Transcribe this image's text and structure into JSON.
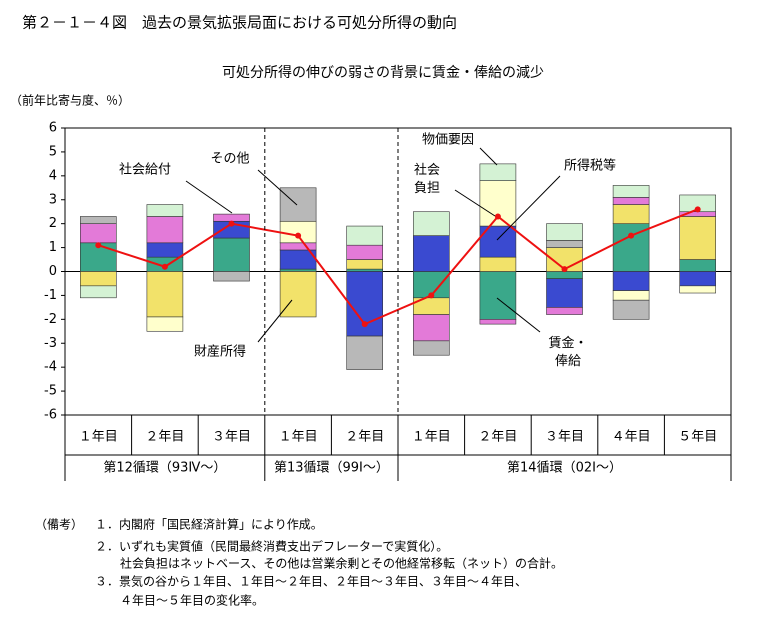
{
  "chart_data": {
    "type": "bar",
    "title": "第２－１－４図　過去の景気拡張局面における可処分所得の動向",
    "subtitle": "可処分所得の伸びの弱さの背景に賃金・俸給の減少",
    "y_label": "（前年比寄与度、％）",
    "categories": [
      "１年目",
      "２年目",
      "３年目",
      "１年目",
      "２年目",
      "１年目",
      "２年目",
      "３年目",
      "４年目",
      "５年目"
    ],
    "groups": [
      {
        "label": "第12循環（93Ⅳ～）",
        "count": 3
      },
      {
        "label": "第13循環（99Ⅰ～）",
        "count": 2
      },
      {
        "label": "第14循環（02Ⅰ～）",
        "count": 5
      }
    ],
    "series": [
      {
        "name": "賃金・俸給",
        "color": "#3aa88a",
        "values": [
          1.2,
          0.6,
          1.4,
          0.1,
          0.1,
          -1.1,
          -2.0,
          -0.3,
          2.0,
          0.5
        ]
      },
      {
        "name": "財産所得",
        "color": "#f2e26a",
        "values": [
          -0.6,
          -1.9,
          0,
          -1.9,
          0.4,
          -0.7,
          0.6,
          1.0,
          0.8,
          1.8
        ]
      },
      {
        "name": "所得税等",
        "color": "#3a4ad0",
        "values": [
          0,
          0.6,
          0.7,
          0.8,
          -2.7,
          1.5,
          1.3,
          -1.2,
          -0.8,
          -0.6
        ]
      },
      {
        "name": "社会給付",
        "color": "#e37ad8",
        "values": [
          0.8,
          1.1,
          0.3,
          0.3,
          0.6,
          -1.1,
          -0.2,
          -0.3,
          0.3,
          0.2
        ]
      },
      {
        "name": "社会負担",
        "color": "#ffffcc",
        "values": [
          0,
          -0.6,
          0,
          0.9,
          0,
          0,
          1.9,
          0,
          -0.4,
          -0.3
        ]
      },
      {
        "name": "その他",
        "color": "#b8b8b8",
        "values": [
          0.3,
          0,
          -0.4,
          1.4,
          -1.4,
          -0.6,
          0,
          0.3,
          -0.8,
          0
        ]
      },
      {
        "name": "物価要因",
        "color": "#d4f2d4",
        "values": [
          -0.5,
          0.5,
          0,
          0,
          0.8,
          1.0,
          0.7,
          0.7,
          0.5,
          0.7
        ]
      }
    ],
    "line": {
      "color": "#ee1111",
      "values": [
        1.1,
        0.2,
        2.0,
        1.5,
        -2.2,
        -1.0,
        2.3,
        0.1,
        1.5,
        2.6
      ]
    },
    "ylim": [
      -6,
      6
    ],
    "yticks": [
      6,
      5,
      4,
      3,
      2,
      1,
      0,
      -1,
      -2,
      -3,
      -4,
      -5,
      -6
    ],
    "notes_label": "（備考）",
    "notes": [
      "１．内閣府「国民経済計算」により作成。",
      "２．いずれも実質値（民間最終消費支出デフレーターで実質化）。",
      "社会負担はネットベース、その他は営業余剰とその他経常移転（ネット）の合計。",
      "３．景気の谷から１年目、１年目～２年目、２年目～３年目、３年目～４年目、",
      "４年目～５年目の変化率。"
    ]
  }
}
